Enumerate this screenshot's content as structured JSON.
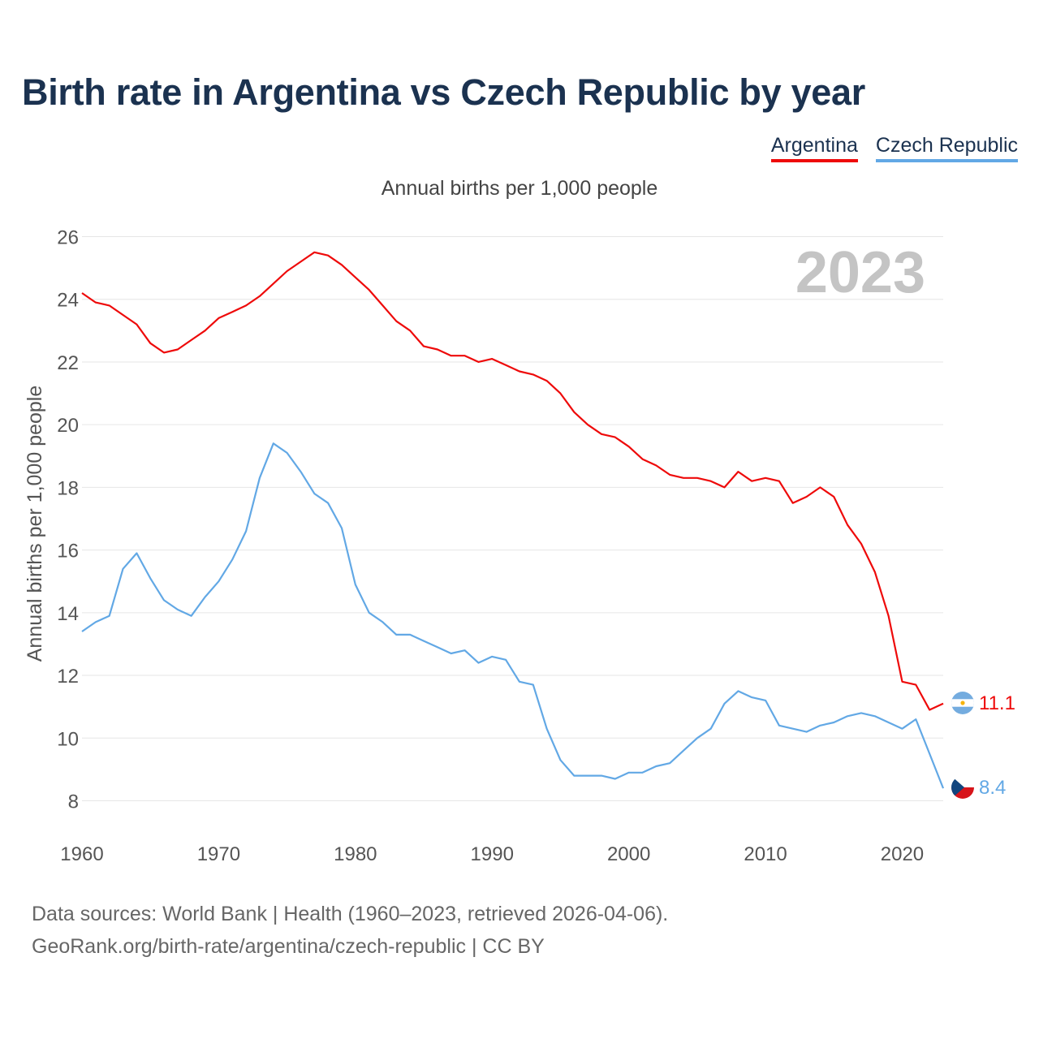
{
  "title": "Birth rate in Argentina vs Czech Republic by year",
  "legend": [
    {
      "label": "Argentina",
      "color": "#ee0a0a"
    },
    {
      "label": "Czech Republic",
      "color": "#62a8e5"
    }
  ],
  "footer": {
    "line1": "Data sources: World Bank | Health (1960–2023, retrieved 2026-04-06).",
    "line2": "GeoRank.org/birth-rate/argentina/czech-republic | CC BY"
  },
  "chart_data": {
    "type": "line",
    "title": "Annual births per 1,000 people",
    "ylabel": "Annual births per 1,000 people",
    "xlabel": "",
    "year_watermark": "2023",
    "xlim": [
      1960,
      2023
    ],
    "ylim": [
      7,
      26.5
    ],
    "x_ticks": [
      "1960",
      "1970",
      "1980",
      "1990",
      "2000",
      "2010",
      "2020"
    ],
    "y_ticks": [
      "8",
      "10",
      "12",
      "14",
      "16",
      "18",
      "20",
      "22",
      "24",
      "26"
    ],
    "x": [
      1960,
      1961,
      1962,
      1963,
      1964,
      1965,
      1966,
      1967,
      1968,
      1969,
      1970,
      1971,
      1972,
      1973,
      1974,
      1975,
      1976,
      1977,
      1978,
      1979,
      1980,
      1981,
      1982,
      1983,
      1984,
      1985,
      1986,
      1987,
      1988,
      1989,
      1990,
      1991,
      1992,
      1993,
      1994,
      1995,
      1996,
      1997,
      1998,
      1999,
      2000,
      2001,
      2002,
      2003,
      2004,
      2005,
      2006,
      2007,
      2008,
      2009,
      2010,
      2011,
      2012,
      2013,
      2014,
      2015,
      2016,
      2017,
      2018,
      2019,
      2020,
      2021,
      2022,
      2023
    ],
    "series": [
      {
        "name": "Argentina",
        "color": "#ee0a0a",
        "end_label": "11.1",
        "values": [
          24.2,
          23.9,
          23.8,
          23.5,
          23.2,
          22.6,
          22.3,
          22.4,
          22.7,
          23.0,
          23.4,
          23.6,
          23.8,
          24.1,
          24.5,
          24.9,
          25.2,
          25.5,
          25.4,
          25.1,
          24.7,
          24.3,
          23.8,
          23.3,
          23.0,
          22.5,
          22.4,
          22.2,
          22.2,
          22.0,
          22.1,
          21.9,
          21.7,
          21.6,
          21.4,
          21.0,
          20.4,
          20.0,
          19.7,
          19.6,
          19.3,
          18.9,
          18.7,
          18.4,
          18.3,
          18.3,
          18.2,
          18.0,
          18.5,
          18.2,
          18.3,
          18.2,
          17.5,
          17.7,
          18.0,
          17.7,
          16.8,
          16.2,
          15.3,
          13.9,
          11.8,
          11.7,
          10.9,
          11.1
        ]
      },
      {
        "name": "Czech Republic",
        "color": "#62a8e5",
        "end_label": "8.4",
        "values": [
          13.4,
          13.7,
          13.9,
          15.4,
          15.9,
          15.1,
          14.4,
          14.1,
          13.9,
          14.5,
          15.0,
          15.7,
          16.6,
          18.3,
          19.4,
          19.1,
          18.5,
          17.8,
          17.5,
          16.7,
          14.9,
          14.0,
          13.7,
          13.3,
          13.3,
          13.1,
          12.9,
          12.7,
          12.8,
          12.4,
          12.6,
          12.5,
          11.8,
          11.7,
          10.3,
          9.3,
          8.8,
          8.8,
          8.8,
          8.7,
          8.9,
          8.9,
          9.1,
          9.2,
          9.6,
          10.0,
          10.3,
          11.1,
          11.5,
          11.3,
          11.2,
          10.4,
          10.3,
          10.2,
          10.4,
          10.5,
          10.7,
          10.8,
          10.7,
          10.5,
          10.3,
          10.6,
          9.5,
          8.4
        ]
      }
    ]
  }
}
